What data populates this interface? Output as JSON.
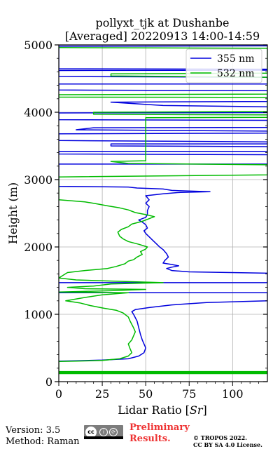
{
  "chart_data": {
    "type": "line",
    "title_line1": "pollyxt_tjk at Dushanbe",
    "title_line2": "[Averaged] 20220913 14:00-14:59",
    "xlabel": "Lidar Ratio [",
    "xlabel_unit": "Sr",
    "xlabel_end": "]",
    "ylabel": "Height (m)",
    "xlim": [
      0,
      120
    ],
    "ylim": [
      0,
      5000
    ],
    "x_ticks": [
      0,
      25,
      50,
      75,
      100
    ],
    "y_ticks": [
      0,
      1000,
      2000,
      3000,
      4000,
      5000
    ],
    "grid": true,
    "legend_position": "top-right",
    "series": [
      {
        "name": "355 nm",
        "color": "#0000dd",
        "points": [
          [
            0,
            305
          ],
          [
            10,
            310
          ],
          [
            25,
            320
          ],
          [
            40,
            340
          ],
          [
            46,
            380
          ],
          [
            49,
            430
          ],
          [
            50,
            500
          ],
          [
            49,
            560
          ],
          [
            48,
            620
          ],
          [
            47,
            700
          ],
          [
            46,
            800
          ],
          [
            45,
            900
          ],
          [
            43,
            1000
          ],
          [
            42,
            1040
          ],
          [
            44,
            1070
          ],
          [
            52,
            1100
          ],
          [
            65,
            1140
          ],
          [
            85,
            1175
          ],
          [
            120,
            1200
          ],
          [
            120,
            1320
          ],
          [
            0,
            1320
          ],
          [
            0,
            1470
          ],
          [
            120,
            1470
          ],
          [
            120,
            1610
          ],
          [
            75,
            1630
          ],
          [
            65,
            1650
          ],
          [
            62,
            1680
          ],
          [
            65,
            1700
          ],
          [
            69,
            1720
          ],
          [
            65,
            1740
          ],
          [
            60,
            1760
          ],
          [
            61,
            1800
          ],
          [
            63,
            1850
          ],
          [
            62,
            1900
          ],
          [
            60,
            1960
          ],
          [
            58,
            2000
          ],
          [
            56,
            2050
          ],
          [
            54,
            2100
          ],
          [
            52,
            2150
          ],
          [
            50,
            2200
          ],
          [
            49,
            2240
          ],
          [
            51,
            2280
          ],
          [
            50,
            2330
          ],
          [
            48,
            2370
          ],
          [
            46,
            2400
          ],
          [
            50,
            2440
          ],
          [
            51,
            2480
          ],
          [
            51,
            2540
          ],
          [
            52,
            2600
          ],
          [
            50,
            2650
          ],
          [
            52,
            2700
          ],
          [
            50,
            2760
          ],
          [
            60,
            2790
          ],
          [
            70,
            2810
          ],
          [
            87,
            2820
          ],
          [
            65,
            2840
          ],
          [
            60,
            2860
          ],
          [
            45,
            2875
          ],
          [
            40,
            2890
          ],
          [
            0,
            2900
          ],
          [
            0,
            3230
          ],
          [
            120,
            3230
          ],
          [
            120,
            3370
          ],
          [
            0,
            3380
          ],
          [
            0,
            3420
          ],
          [
            120,
            3420
          ],
          [
            120,
            3490
          ],
          [
            30,
            3500
          ],
          [
            30,
            3530
          ],
          [
            120,
            3530
          ],
          [
            120,
            3560
          ],
          [
            0,
            3580
          ],
          [
            0,
            3680
          ],
          [
            120,
            3690
          ],
          [
            120,
            3720
          ],
          [
            10,
            3740
          ],
          [
            20,
            3770
          ],
          [
            120,
            3775
          ],
          [
            120,
            3880
          ],
          [
            0,
            3890
          ],
          [
            0,
            3990
          ],
          [
            120,
            3995
          ],
          [
            120,
            4080
          ],
          [
            60,
            4100
          ],
          [
            30,
            4150
          ],
          [
            120,
            4160
          ],
          [
            120,
            4320
          ],
          [
            0,
            4330
          ],
          [
            0,
            4420
          ],
          [
            120,
            4420
          ],
          [
            120,
            4520
          ],
          [
            0,
            4530
          ],
          [
            0,
            4620
          ],
          [
            120,
            4625
          ],
          [
            120,
            4640
          ],
          [
            0,
            4645
          ],
          [
            0,
            4980
          ],
          [
            120,
            4985
          ]
        ]
      },
      {
        "name": "532 nm",
        "color": "#00bb00",
        "points": [
          [
            0,
            120
          ],
          [
            120,
            120
          ],
          [
            120,
            130
          ],
          [
            0,
            130
          ],
          [
            0,
            140
          ],
          [
            120,
            140
          ],
          [
            120,
            150
          ],
          [
            0,
            150
          ],
          [
            0,
            300
          ],
          [
            10,
            305
          ],
          [
            25,
            315
          ],
          [
            35,
            340
          ],
          [
            40,
            380
          ],
          [
            42,
            430
          ],
          [
            41,
            490
          ],
          [
            40,
            560
          ],
          [
            42,
            620
          ],
          [
            43,
            680
          ],
          [
            44,
            740
          ],
          [
            43,
            800
          ],
          [
            42,
            850
          ],
          [
            41,
            900
          ],
          [
            40,
            960
          ],
          [
            37,
            1020
          ],
          [
            33,
            1060
          ],
          [
            26,
            1090
          ],
          [
            18,
            1130
          ],
          [
            12,
            1170
          ],
          [
            4,
            1200
          ],
          [
            15,
            1250
          ],
          [
            25,
            1290
          ],
          [
            40,
            1320
          ],
          [
            0,
            1330
          ],
          [
            30,
            1350
          ],
          [
            50,
            1370
          ],
          [
            15,
            1380
          ],
          [
            5,
            1400
          ],
          [
            20,
            1420
          ],
          [
            30,
            1450
          ],
          [
            60,
            1470
          ],
          [
            35,
            1490
          ],
          [
            10,
            1510
          ],
          [
            0,
            1540
          ],
          [
            5,
            1620
          ],
          [
            15,
            1650
          ],
          [
            28,
            1680
          ],
          [
            33,
            1710
          ],
          [
            38,
            1750
          ],
          [
            40,
            1790
          ],
          [
            43,
            1810
          ],
          [
            45,
            1850
          ],
          [
            48,
            1890
          ],
          [
            47,
            1930
          ],
          [
            50,
            1970
          ],
          [
            51,
            2000
          ],
          [
            46,
            2040
          ],
          [
            40,
            2080
          ],
          [
            37,
            2120
          ],
          [
            35,
            2160
          ],
          [
            34,
            2220
          ],
          [
            36,
            2260
          ],
          [
            40,
            2300
          ],
          [
            42,
            2340
          ],
          [
            48,
            2380
          ],
          [
            52,
            2420
          ],
          [
            55,
            2450
          ],
          [
            50,
            2480
          ],
          [
            44,
            2510
          ],
          [
            40,
            2550
          ],
          [
            35,
            2580
          ],
          [
            28,
            2610
          ],
          [
            22,
            2640
          ],
          [
            15,
            2670
          ],
          [
            5,
            2690
          ],
          [
            0,
            2700
          ],
          [
            0,
            3040
          ],
          [
            120,
            3070
          ],
          [
            120,
            3220
          ],
          [
            40,
            3240
          ],
          [
            30,
            3270
          ],
          [
            50,
            3280
          ],
          [
            50,
            3920
          ],
          [
            120,
            3925
          ],
          [
            120,
            3960
          ],
          [
            20,
            3970
          ],
          [
            20,
            4000
          ],
          [
            120,
            4010
          ],
          [
            120,
            4220
          ],
          [
            0,
            4225
          ],
          [
            0,
            4260
          ],
          [
            120,
            4270
          ],
          [
            120,
            4520
          ],
          [
            30,
            4540
          ],
          [
            30,
            4570
          ],
          [
            120,
            4580
          ],
          [
            120,
            4950
          ],
          [
            0,
            4960
          ]
        ]
      }
    ]
  },
  "footer": {
    "version": "Version: 3.5",
    "method": "Method: Raman",
    "prelim_1": "Preliminary",
    "prelim_2": "Results.",
    "copyright_1": "© TROPOS 2022.",
    "copyright_2": "CC BY SA 4.0 License.",
    "cc_mark": "cc",
    "by_mark": "i",
    "sa_mark": "⟳"
  }
}
